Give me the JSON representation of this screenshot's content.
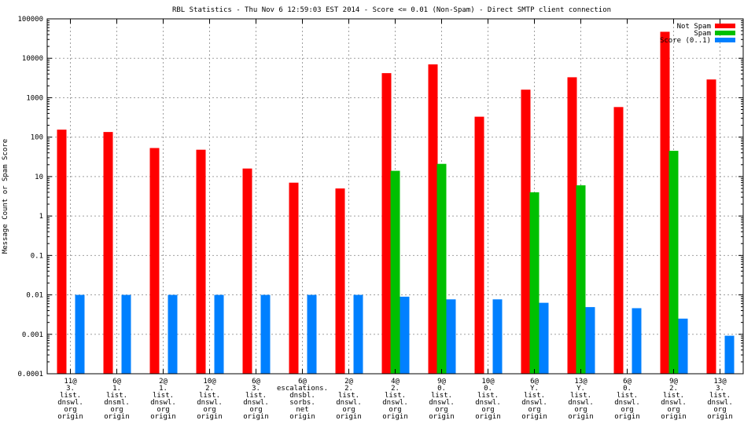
{
  "chart_data": {
    "type": "bar",
    "title": "RBL Statistics - Thu Nov  6 12:59:03 EST 2014 - Score <= 0.01 (Non-Spam) - Direct SMTP client connection",
    "ylabel": "Message Count or Spam Score",
    "xlabel": "",
    "y_scale": "log",
    "ylim": [
      0.0001,
      100000
    ],
    "y_ticks": [
      {
        "value": 0.0001,
        "label": "0.0001"
      },
      {
        "value": 0.001,
        "label": "0.001"
      },
      {
        "value": 0.01,
        "label": "0.01"
      },
      {
        "value": 0.1,
        "label": "0.1"
      },
      {
        "value": 1,
        "label": "1"
      },
      {
        "value": 10,
        "label": "10"
      },
      {
        "value": 100,
        "label": "100"
      },
      {
        "value": 1000,
        "label": "1000"
      },
      {
        "value": 10000,
        "label": "10000"
      },
      {
        "value": 100000,
        "label": "100000"
      }
    ],
    "grid": true,
    "legend_position": "top-right",
    "categories": [
      [
        "11@",
        "3.",
        "list.",
        "dnswl.",
        "org",
        "origin"
      ],
      [
        "6@",
        "1.",
        "list.",
        "dnsml.",
        "org",
        "origin"
      ],
      [
        "2@",
        "1.",
        "list.",
        "dnswl.",
        "org",
        "origin"
      ],
      [
        "10@",
        "2.",
        "list.",
        "dnswl.",
        "org",
        "origin"
      ],
      [
        "6@",
        "3.",
        "list.",
        "dnswl.",
        "org",
        "origin"
      ],
      [
        "6@",
        "escalations.",
        "dnsbl.",
        "sorbs.",
        "net",
        "origin"
      ],
      [
        "2@",
        "2.",
        "list.",
        "dnswl.",
        "org",
        "origin"
      ],
      [
        "4@",
        "2.",
        "list.",
        "dnswl.",
        "org",
        "origin"
      ],
      [
        "9@",
        "0.",
        "list.",
        "dnswl.",
        "org",
        "origin"
      ],
      [
        "10@",
        "0.",
        "list.",
        "dnswl.",
        "org",
        "origin"
      ],
      [
        "6@",
        "Y.",
        "list.",
        "dnswl.",
        "org",
        "origin"
      ],
      [
        "13@",
        "Y.",
        "list.",
        "dnswl.",
        "org",
        "origin"
      ],
      [
        "6@",
        "0.",
        "list.",
        "dnswl.",
        "org",
        "origin"
      ],
      [
        "9@",
        "2.",
        "list.",
        "dnswl.",
        "org",
        "origin"
      ],
      [
        "13@",
        "3.",
        "list.",
        "dnswl.",
        "org",
        "origin"
      ]
    ],
    "series": [
      {
        "name": "Not Spam",
        "color": "#ff0000",
        "values": [
          155,
          135,
          53,
          48,
          16,
          7,
          5,
          4200,
          7000,
          330,
          1600,
          3300,
          580,
          47000,
          2900
        ]
      },
      {
        "name": "Spam",
        "color": "#00c000",
        "values": [
          null,
          null,
          null,
          null,
          null,
          null,
          null,
          14,
          21,
          null,
          4,
          6,
          null,
          45,
          null
        ]
      },
      {
        "name": "Score (0..1)",
        "color": "#0080ff",
        "values": [
          0.01,
          0.01,
          0.01,
          0.01,
          0.01,
          0.01,
          0.01,
          0.009,
          0.0077,
          0.0077,
          0.0063,
          0.0049,
          0.0046,
          0.0025,
          0.00092
        ]
      }
    ]
  }
}
